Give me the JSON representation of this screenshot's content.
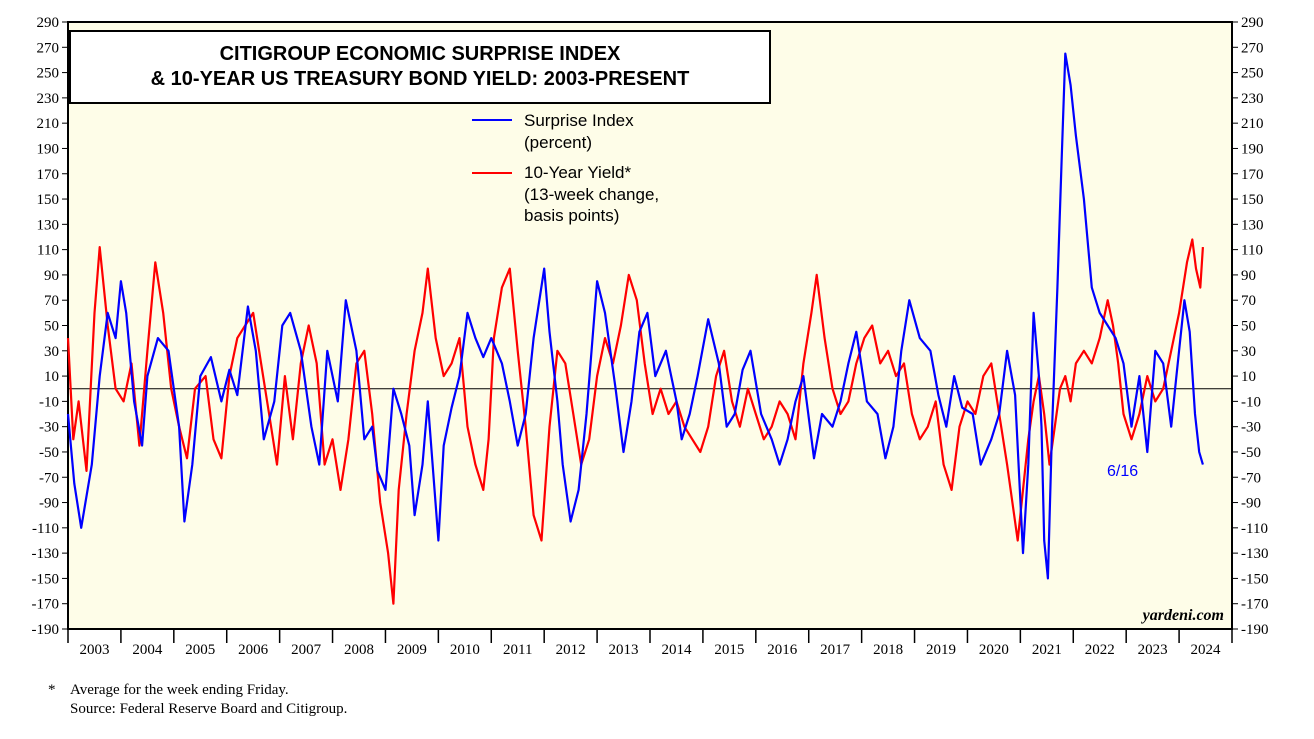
{
  "chart_data": {
    "type": "line",
    "title_lines": [
      "CITIGROUP ECONOMIC SURPRISE INDEX",
      "& 10-YEAR US TREASURY BOND YIELD: 2003-PRESENT"
    ],
    "y_ticks": [
      "290",
      "270",
      "250",
      "230",
      "210",
      "190",
      "170",
      "150",
      "130",
      "110",
      "90",
      "70",
      "50",
      "30",
      "10",
      "-10",
      "-30",
      "-50",
      "-70",
      "-90",
      "-110",
      "-130",
      "-150",
      "-170",
      "-190"
    ],
    "ylim": [
      -190,
      290
    ],
    "zero_line": 0,
    "x_ticks": [
      "2003",
      "2004",
      "2005",
      "2006",
      "2007",
      "2008",
      "2009",
      "2010",
      "2011",
      "2012",
      "2013",
      "2014",
      "2015",
      "2016",
      "2017",
      "2018",
      "2019",
      "2020",
      "2021",
      "2022",
      "2023",
      "2024"
    ],
    "xlim": [
      2003,
      2025
    ],
    "series": [
      {
        "name": "Surprise Index",
        "legend_lines": [
          "Surprise Index",
          "(percent)"
        ],
        "color": "#0000ff",
        "points": [
          [
            2003.0,
            -20
          ],
          [
            2003.12,
            -75
          ],
          [
            2003.25,
            -110
          ],
          [
            2003.45,
            -60
          ],
          [
            2003.6,
            10
          ],
          [
            2003.75,
            60
          ],
          [
            2003.9,
            40
          ],
          [
            2004.0,
            85
          ],
          [
            2004.1,
            60
          ],
          [
            2004.25,
            -10
          ],
          [
            2004.4,
            -45
          ],
          [
            2004.5,
            10
          ],
          [
            2004.7,
            40
          ],
          [
            2004.9,
            30
          ],
          [
            2005.1,
            -30
          ],
          [
            2005.2,
            -105
          ],
          [
            2005.35,
            -60
          ],
          [
            2005.5,
            10
          ],
          [
            2005.7,
            25
          ],
          [
            2005.9,
            -10
          ],
          [
            2006.05,
            15
          ],
          [
            2006.2,
            -5
          ],
          [
            2006.4,
            65
          ],
          [
            2006.55,
            30
          ],
          [
            2006.7,
            -40
          ],
          [
            2006.9,
            -10
          ],
          [
            2007.05,
            50
          ],
          [
            2007.2,
            60
          ],
          [
            2007.4,
            30
          ],
          [
            2007.6,
            -30
          ],
          [
            2007.75,
            -60
          ],
          [
            2007.9,
            30
          ],
          [
            2008.1,
            -10
          ],
          [
            2008.25,
            70
          ],
          [
            2008.45,
            30
          ],
          [
            2008.6,
            -40
          ],
          [
            2008.75,
            -30
          ],
          [
            2008.85,
            -65
          ],
          [
            2009.0,
            -80
          ],
          [
            2009.15,
            0
          ],
          [
            2009.3,
            -20
          ],
          [
            2009.45,
            -45
          ],
          [
            2009.55,
            -100
          ],
          [
            2009.7,
            -60
          ],
          [
            2009.8,
            -10
          ],
          [
            2010.0,
            -120
          ],
          [
            2010.1,
            -45
          ],
          [
            2010.25,
            -15
          ],
          [
            2010.4,
            10
          ],
          [
            2010.55,
            60
          ],
          [
            2010.7,
            40
          ],
          [
            2010.85,
            25
          ],
          [
            2011.0,
            40
          ],
          [
            2011.2,
            20
          ],
          [
            2011.35,
            -10
          ],
          [
            2011.5,
            -45
          ],
          [
            2011.65,
            -20
          ],
          [
            2011.8,
            40
          ],
          [
            2012.0,
            95
          ],
          [
            2012.1,
            45
          ],
          [
            2012.25,
            -10
          ],
          [
            2012.35,
            -60
          ],
          [
            2012.5,
            -105
          ],
          [
            2012.65,
            -80
          ],
          [
            2012.8,
            -20
          ],
          [
            2013.0,
            85
          ],
          [
            2013.15,
            60
          ],
          [
            2013.35,
            0
          ],
          [
            2013.5,
            -50
          ],
          [
            2013.65,
            -10
          ],
          [
            2013.8,
            45
          ],
          [
            2013.95,
            60
          ],
          [
            2014.1,
            10
          ],
          [
            2014.3,
            30
          ],
          [
            2014.5,
            -10
          ],
          [
            2014.6,
            -40
          ],
          [
            2014.75,
            -20
          ],
          [
            2014.9,
            10
          ],
          [
            2015.1,
            55
          ],
          [
            2015.3,
            20
          ],
          [
            2015.45,
            -30
          ],
          [
            2015.6,
            -20
          ],
          [
            2015.75,
            15
          ],
          [
            2015.9,
            30
          ],
          [
            2016.1,
            -20
          ],
          [
            2016.3,
            -40
          ],
          [
            2016.45,
            -60
          ],
          [
            2016.6,
            -40
          ],
          [
            2016.75,
            -10
          ],
          [
            2016.9,
            10
          ],
          [
            2017.1,
            -55
          ],
          [
            2017.25,
            -20
          ],
          [
            2017.45,
            -30
          ],
          [
            2017.6,
            -10
          ],
          [
            2017.75,
            20
          ],
          [
            2017.9,
            45
          ],
          [
            2018.1,
            -10
          ],
          [
            2018.3,
            -20
          ],
          [
            2018.45,
            -55
          ],
          [
            2018.6,
            -30
          ],
          [
            2018.75,
            30
          ],
          [
            2018.9,
            70
          ],
          [
            2019.1,
            40
          ],
          [
            2019.3,
            30
          ],
          [
            2019.45,
            -5
          ],
          [
            2019.6,
            -30
          ],
          [
            2019.75,
            10
          ],
          [
            2019.9,
            -15
          ],
          [
            2020.1,
            -20
          ],
          [
            2020.25,
            -60
          ],
          [
            2020.45,
            -40
          ],
          [
            2020.6,
            -20
          ],
          [
            2020.75,
            30
          ],
          [
            2020.9,
            -5
          ],
          [
            2021.05,
            -130
          ],
          [
            2021.15,
            -60
          ],
          [
            2021.25,
            60
          ],
          [
            2021.35,
            10
          ],
          [
            2021.4,
            -30
          ],
          [
            2021.45,
            -120
          ],
          [
            2021.52,
            -150
          ],
          [
            2021.6,
            -30
          ],
          [
            2021.7,
            80
          ],
          [
            2021.78,
            180
          ],
          [
            2021.85,
            265
          ],
          [
            2021.95,
            240
          ],
          [
            2022.05,
            200
          ],
          [
            2022.2,
            150
          ],
          [
            2022.35,
            80
          ],
          [
            2022.5,
            60
          ],
          [
            2022.65,
            50
          ],
          [
            2022.8,
            40
          ],
          [
            2022.95,
            20
          ],
          [
            2023.1,
            -30
          ],
          [
            2023.25,
            10
          ],
          [
            2023.4,
            -50
          ],
          [
            2023.55,
            30
          ],
          [
            2023.7,
            20
          ],
          [
            2023.85,
            -30
          ],
          [
            2023.95,
            10
          ],
          [
            2024.1,
            70
          ],
          [
            2024.2,
            45
          ],
          [
            2024.3,
            -20
          ],
          [
            2024.38,
            -50
          ],
          [
            2024.45,
            -60
          ]
        ]
      },
      {
        "name": "10-Year Yield*",
        "legend_lines": [
          "10-Year Yield*",
          "(13-week change,",
          "basis points)"
        ],
        "color": "#ff0000",
        "points": [
          [
            2003.0,
            40
          ],
          [
            2003.1,
            -40
          ],
          [
            2003.2,
            -10
          ],
          [
            2003.35,
            -65
          ],
          [
            2003.5,
            60
          ],
          [
            2003.6,
            112
          ],
          [
            2003.75,
            50
          ],
          [
            2003.9,
            0
          ],
          [
            2004.05,
            -10
          ],
          [
            2004.2,
            20
          ],
          [
            2004.35,
            -45
          ],
          [
            2004.5,
            30
          ],
          [
            2004.65,
            100
          ],
          [
            2004.8,
            60
          ],
          [
            2004.95,
            0
          ],
          [
            2005.1,
            -30
          ],
          [
            2005.25,
            -55
          ],
          [
            2005.4,
            0
          ],
          [
            2005.6,
            10
          ],
          [
            2005.75,
            -40
          ],
          [
            2005.9,
            -55
          ],
          [
            2006.05,
            10
          ],
          [
            2006.2,
            40
          ],
          [
            2006.35,
            50
          ],
          [
            2006.5,
            60
          ],
          [
            2006.65,
            20
          ],
          [
            2006.8,
            -20
          ],
          [
            2006.95,
            -60
          ],
          [
            2007.1,
            10
          ],
          [
            2007.25,
            -40
          ],
          [
            2007.4,
            20
          ],
          [
            2007.55,
            50
          ],
          [
            2007.7,
            20
          ],
          [
            2007.85,
            -60
          ],
          [
            2008.0,
            -40
          ],
          [
            2008.15,
            -80
          ],
          [
            2008.3,
            -40
          ],
          [
            2008.45,
            20
          ],
          [
            2008.6,
            30
          ],
          [
            2008.75,
            -20
          ],
          [
            2008.9,
            -90
          ],
          [
            2009.05,
            -130
          ],
          [
            2009.15,
            -170
          ],
          [
            2009.25,
            -80
          ],
          [
            2009.4,
            -20
          ],
          [
            2009.55,
            30
          ],
          [
            2009.7,
            60
          ],
          [
            2009.8,
            95
          ],
          [
            2009.95,
            40
          ],
          [
            2010.1,
            10
          ],
          [
            2010.25,
            20
          ],
          [
            2010.4,
            40
          ],
          [
            2010.55,
            -30
          ],
          [
            2010.7,
            -60
          ],
          [
            2010.85,
            -80
          ],
          [
            2010.95,
            -40
          ],
          [
            2011.05,
            40
          ],
          [
            2011.2,
            80
          ],
          [
            2011.35,
            95
          ],
          [
            2011.5,
            30
          ],
          [
            2011.65,
            -30
          ],
          [
            2011.8,
            -100
          ],
          [
            2011.95,
            -120
          ],
          [
            2012.1,
            -30
          ],
          [
            2012.25,
            30
          ],
          [
            2012.4,
            20
          ],
          [
            2012.55,
            -20
          ],
          [
            2012.7,
            -60
          ],
          [
            2012.85,
            -40
          ],
          [
            2013.0,
            10
          ],
          [
            2013.15,
            40
          ],
          [
            2013.3,
            20
          ],
          [
            2013.45,
            50
          ],
          [
            2013.6,
            90
          ],
          [
            2013.75,
            70
          ],
          [
            2013.9,
            20
          ],
          [
            2014.05,
            -20
          ],
          [
            2014.2,
            0
          ],
          [
            2014.35,
            -20
          ],
          [
            2014.5,
            -10
          ],
          [
            2014.65,
            -30
          ],
          [
            2014.8,
            -40
          ],
          [
            2014.95,
            -50
          ],
          [
            2015.1,
            -30
          ],
          [
            2015.25,
            10
          ],
          [
            2015.4,
            30
          ],
          [
            2015.55,
            -10
          ],
          [
            2015.7,
            -30
          ],
          [
            2015.85,
            0
          ],
          [
            2016.0,
            -20
          ],
          [
            2016.15,
            -40
          ],
          [
            2016.3,
            -30
          ],
          [
            2016.45,
            -10
          ],
          [
            2016.6,
            -20
          ],
          [
            2016.75,
            -40
          ],
          [
            2016.9,
            20
          ],
          [
            2017.05,
            60
          ],
          [
            2017.15,
            90
          ],
          [
            2017.3,
            40
          ],
          [
            2017.45,
            0
          ],
          [
            2017.6,
            -20
          ],
          [
            2017.75,
            -10
          ],
          [
            2017.9,
            20
          ],
          [
            2018.05,
            40
          ],
          [
            2018.2,
            50
          ],
          [
            2018.35,
            20
          ],
          [
            2018.5,
            30
          ],
          [
            2018.65,
            10
          ],
          [
            2018.8,
            20
          ],
          [
            2018.95,
            -20
          ],
          [
            2019.1,
            -40
          ],
          [
            2019.25,
            -30
          ],
          [
            2019.4,
            -10
          ],
          [
            2019.55,
            -60
          ],
          [
            2019.7,
            -80
          ],
          [
            2019.85,
            -30
          ],
          [
            2020.0,
            -10
          ],
          [
            2020.15,
            -20
          ],
          [
            2020.3,
            10
          ],
          [
            2020.45,
            20
          ],
          [
            2020.6,
            -20
          ],
          [
            2020.75,
            -60
          ],
          [
            2020.85,
            -90
          ],
          [
            2020.95,
            -120
          ],
          [
            2021.05,
            -80
          ],
          [
            2021.15,
            -40
          ],
          [
            2021.25,
            -10
          ],
          [
            2021.35,
            10
          ],
          [
            2021.45,
            -20
          ],
          [
            2021.55,
            -60
          ],
          [
            2021.65,
            -30
          ],
          [
            2021.75,
            0
          ],
          [
            2021.85,
            10
          ],
          [
            2021.95,
            -10
          ],
          [
            2022.05,
            20
          ],
          [
            2022.2,
            30
          ],
          [
            2022.35,
            20
          ],
          [
            2022.5,
            40
          ],
          [
            2022.65,
            70
          ],
          [
            2022.75,
            50
          ],
          [
            2022.85,
            20
          ],
          [
            2022.95,
            -20
          ],
          [
            2023.1,
            -40
          ],
          [
            2023.25,
            -20
          ],
          [
            2023.4,
            10
          ],
          [
            2023.55,
            -10
          ],
          [
            2023.7,
            0
          ],
          [
            2023.85,
            30
          ],
          [
            2024.0,
            60
          ],
          [
            2024.15,
            100
          ],
          [
            2024.25,
            118
          ],
          [
            2024.32,
            95
          ],
          [
            2024.4,
            80
          ],
          [
            2024.45,
            112
          ]
        ]
      }
    ],
    "last_label": "6/16",
    "last_label_color": "#0000ff",
    "source_brand": "yardeni.com",
    "plot_background": "#fefde8"
  },
  "footnote": {
    "star": "*",
    "line1": "Average for the week ending Friday.",
    "line2": "Source: Federal Reserve Board and Citigroup."
  }
}
